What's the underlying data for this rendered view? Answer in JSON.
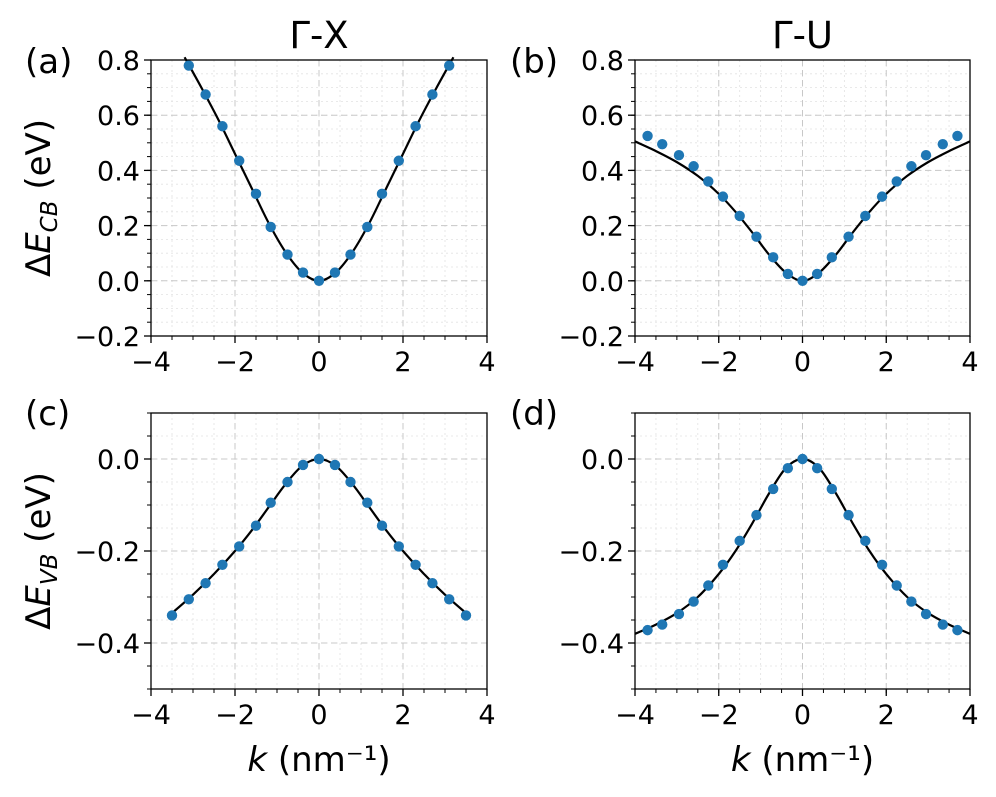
{
  "chart_data": [
    {
      "panel_label": "(a)",
      "title": "Γ-X",
      "type": "scatter",
      "xlim": [
        -4,
        4
      ],
      "ylim": [
        -0.2,
        0.8
      ],
      "xticks": [
        -4,
        -2,
        0,
        2,
        4
      ],
      "yticks": [
        -0.2,
        0.0,
        0.2,
        0.4,
        0.6,
        0.8
      ],
      "ytick_decimals": 1,
      "xlabel": "",
      "ylabel": "ΔE_CB (eV)",
      "grid": true,
      "series": [
        {
          "type": "scatter",
          "color": "#1f77b4",
          "x": [
            -3.1,
            -2.7,
            -2.3,
            -1.9,
            -1.5,
            -1.15,
            -0.75,
            -0.38,
            0,
            0.38,
            0.75,
            1.15,
            1.5,
            1.9,
            2.3,
            2.7,
            3.1
          ],
          "y": [
            0.78,
            0.675,
            0.56,
            0.435,
            0.315,
            0.195,
            0.095,
            0.03,
            0.0,
            0.03,
            0.095,
            0.195,
            0.315,
            0.435,
            0.56,
            0.675,
            0.78
          ]
        },
        {
          "type": "line",
          "color": "#000000",
          "x": [
            -3.2,
            -2.8,
            -2.4,
            -2.0,
            -1.6,
            -1.2,
            -0.8,
            -0.4,
            0,
            0.4,
            0.8,
            1.2,
            1.6,
            2.0,
            2.4,
            2.8,
            3.2
          ],
          "y": [
            0.81,
            0.7,
            0.585,
            0.46,
            0.335,
            0.21,
            0.105,
            0.03,
            0.0,
            0.03,
            0.105,
            0.21,
            0.335,
            0.46,
            0.585,
            0.7,
            0.81
          ]
        }
      ]
    },
    {
      "panel_label": "(b)",
      "title": "Γ-U",
      "type": "scatter",
      "xlim": [
        -4,
        4
      ],
      "ylim": [
        -0.2,
        0.8
      ],
      "xticks": [
        -4,
        -2,
        0,
        2,
        4
      ],
      "yticks": [
        -0.2,
        0.0,
        0.2,
        0.4,
        0.6,
        0.8
      ],
      "ytick_decimals": 1,
      "xlabel": "",
      "ylabel": "",
      "grid": true,
      "series": [
        {
          "type": "scatter",
          "color": "#1f77b4",
          "x": [
            -3.7,
            -3.35,
            -2.95,
            -2.6,
            -2.25,
            -1.9,
            -1.5,
            -1.1,
            -0.7,
            -0.35,
            0,
            0.35,
            0.7,
            1.1,
            1.5,
            1.9,
            2.25,
            2.6,
            2.95,
            3.35,
            3.7
          ],
          "y": [
            0.525,
            0.495,
            0.455,
            0.415,
            0.36,
            0.305,
            0.235,
            0.16,
            0.085,
            0.025,
            0.0,
            0.025,
            0.085,
            0.16,
            0.235,
            0.305,
            0.36,
            0.415,
            0.455,
            0.495,
            0.525
          ]
        },
        {
          "type": "line",
          "color": "#000000",
          "x": [
            -4.0,
            -3.5,
            -3.0,
            -2.5,
            -2.0,
            -1.6,
            -1.2,
            -0.8,
            -0.4,
            0,
            0.4,
            0.8,
            1.2,
            1.6,
            2.0,
            2.5,
            3.0,
            3.5,
            4.0
          ],
          "y": [
            0.505,
            0.47,
            0.43,
            0.38,
            0.315,
            0.25,
            0.175,
            0.095,
            0.03,
            0.0,
            0.03,
            0.095,
            0.175,
            0.25,
            0.315,
            0.38,
            0.43,
            0.47,
            0.505
          ]
        }
      ]
    },
    {
      "panel_label": "(c)",
      "title": "",
      "type": "scatter",
      "xlim": [
        -4,
        4
      ],
      "ylim": [
        -0.5,
        0.1
      ],
      "xticks": [
        -4,
        -2,
        0,
        2,
        4
      ],
      "yticks": [
        -0.4,
        -0.2,
        0.0
      ],
      "ytick_decimals": 1,
      "xlabel": "k (nm⁻¹)",
      "ylabel": "ΔE_VB (eV)",
      "grid": true,
      "series": [
        {
          "type": "scatter",
          "color": "#1f77b4",
          "x": [
            -3.5,
            -3.1,
            -2.7,
            -2.3,
            -1.9,
            -1.5,
            -1.15,
            -0.75,
            -0.38,
            0,
            0.38,
            0.75,
            1.15,
            1.5,
            1.9,
            2.3,
            2.7,
            3.1,
            3.5
          ],
          "y": [
            -0.34,
            -0.305,
            -0.27,
            -0.23,
            -0.19,
            -0.145,
            -0.095,
            -0.05,
            -0.013,
            0.0,
            -0.013,
            -0.05,
            -0.095,
            -0.145,
            -0.19,
            -0.23,
            -0.27,
            -0.305,
            -0.34
          ]
        },
        {
          "type": "line",
          "color": "#000000",
          "x": [
            -3.5,
            -3.0,
            -2.5,
            -2.0,
            -1.6,
            -1.2,
            -0.8,
            -0.4,
            0,
            0.4,
            0.8,
            1.2,
            1.6,
            2.0,
            2.5,
            3.0,
            3.5
          ],
          "y": [
            -0.335,
            -0.295,
            -0.25,
            -0.2,
            -0.155,
            -0.105,
            -0.055,
            -0.015,
            0.0,
            -0.015,
            -0.055,
            -0.105,
            -0.155,
            -0.2,
            -0.25,
            -0.295,
            -0.335
          ]
        }
      ]
    },
    {
      "panel_label": "(d)",
      "title": "",
      "type": "scatter",
      "xlim": [
        -4,
        4
      ],
      "ylim": [
        -0.5,
        0.1
      ],
      "xticks": [
        -4,
        -2,
        0,
        2,
        4
      ],
      "yticks": [
        -0.4,
        -0.2,
        0.0
      ],
      "ytick_decimals": 1,
      "xlabel": "k (nm⁻¹)",
      "ylabel": "",
      "grid": true,
      "series": [
        {
          "type": "scatter",
          "color": "#1f77b4",
          "x": [
            -3.7,
            -3.35,
            -2.95,
            -2.6,
            -2.25,
            -1.9,
            -1.5,
            -1.1,
            -0.7,
            -0.35,
            0,
            0.35,
            0.7,
            1.1,
            1.5,
            1.9,
            2.25,
            2.6,
            2.95,
            3.35,
            3.7
          ],
          "y": [
            -0.372,
            -0.36,
            -0.337,
            -0.31,
            -0.275,
            -0.23,
            -0.178,
            -0.122,
            -0.065,
            -0.02,
            0.0,
            -0.02,
            -0.065,
            -0.122,
            -0.178,
            -0.23,
            -0.275,
            -0.31,
            -0.337,
            -0.36,
            -0.372
          ]
        },
        {
          "type": "line",
          "color": "#000000",
          "x": [
            -4.0,
            -3.5,
            -3.0,
            -2.5,
            -2.0,
            -1.6,
            -1.2,
            -0.8,
            -0.4,
            0,
            0.4,
            0.8,
            1.2,
            1.6,
            2.0,
            2.5,
            3.0,
            3.5,
            4.0
          ],
          "y": [
            -0.38,
            -0.36,
            -0.335,
            -0.3,
            -0.25,
            -0.2,
            -0.14,
            -0.075,
            -0.02,
            0.0,
            -0.02,
            -0.075,
            -0.14,
            -0.2,
            -0.25,
            -0.3,
            -0.335,
            -0.36,
            -0.38
          ]
        }
      ]
    }
  ]
}
